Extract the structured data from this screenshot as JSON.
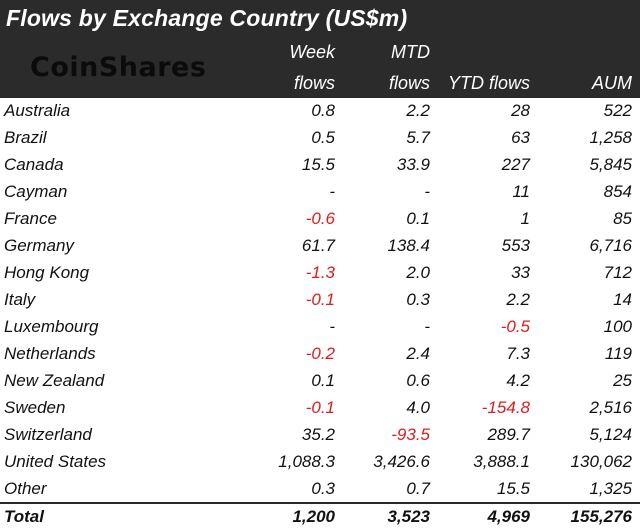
{
  "title": "Flows by Exchange Country (US$m)",
  "logo": "CoinShares",
  "headers": {
    "col1_line1": "Week",
    "col1_line2": "flows",
    "col2_line1": "MTD",
    "col2_line2": "flows",
    "col3": "YTD flows",
    "col4": "AUM"
  },
  "colors": {
    "header_bg": "#2b2b2b",
    "negative": "#e01b1b"
  },
  "rows": [
    {
      "name": "Australia",
      "week": "0.8",
      "mtd": "2.2",
      "ytd": "28",
      "aum": "522"
    },
    {
      "name": "Brazil",
      "week": "0.5",
      "mtd": "5.7",
      "ytd": "63",
      "aum": "1,258"
    },
    {
      "name": "Canada",
      "week": "15.5",
      "mtd": "33.9",
      "ytd": "227",
      "aum": "5,845"
    },
    {
      "name": "Cayman",
      "week": "-",
      "mtd": "-",
      "ytd": "11",
      "aum": "854"
    },
    {
      "name": "France",
      "week": "-0.6",
      "mtd": "0.1",
      "ytd": "1",
      "aum": "85"
    },
    {
      "name": "Germany",
      "week": "61.7",
      "mtd": "138.4",
      "ytd": "553",
      "aum": "6,716"
    },
    {
      "name": "Hong Kong",
      "week": "-1.3",
      "mtd": "2.0",
      "ytd": "33",
      "aum": "712"
    },
    {
      "name": "Italy",
      "week": "-0.1",
      "mtd": "0.3",
      "ytd": "2.2",
      "aum": "14"
    },
    {
      "name": "Luxembourg",
      "week": "-",
      "mtd": "-",
      "ytd": "-0.5",
      "aum": "100"
    },
    {
      "name": "Netherlands",
      "week": "-0.2",
      "mtd": "2.4",
      "ytd": "7.3",
      "aum": "119"
    },
    {
      "name": "New Zealand",
      "week": "0.1",
      "mtd": "0.6",
      "ytd": "4.2",
      "aum": "25"
    },
    {
      "name": "Sweden",
      "week": "-0.1",
      "mtd": "4.0",
      "ytd": "-154.8",
      "aum": "2,516"
    },
    {
      "name": "Switzerland",
      "week": "35.2",
      "mtd": "-93.5",
      "ytd": "289.7",
      "aum": "5,124"
    },
    {
      "name": "United States",
      "week": "1,088.3",
      "mtd": "3,426.6",
      "ytd": "3,888.1",
      "aum": "130,062"
    },
    {
      "name": "Other",
      "week": "0.3",
      "mtd": "0.7",
      "ytd": "15.5",
      "aum": "1,325"
    }
  ],
  "total": {
    "name": "Total",
    "week": "1,200",
    "mtd": "3,523",
    "ytd": "4,969",
    "aum": "155,276"
  }
}
